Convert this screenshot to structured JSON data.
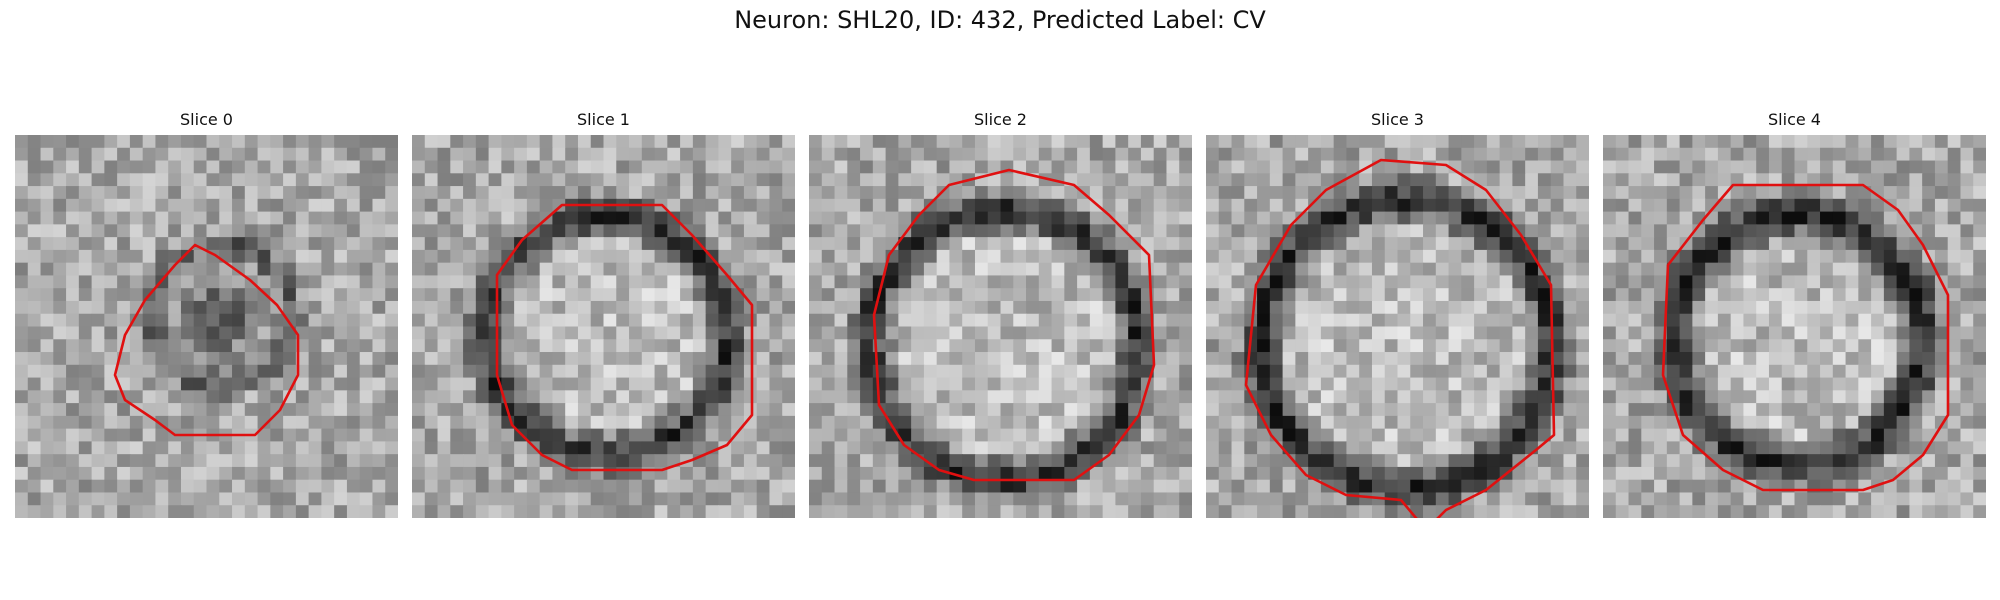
{
  "figure": {
    "title": "Neuron: SHL20, ID: 432, Predicted Label: CV"
  },
  "contour_color": "#e01010",
  "slices": [
    {
      "title": "Slice 0"
    },
    {
      "title": "Slice 1"
    },
    {
      "title": "Slice 2"
    },
    {
      "title": "Slice 3"
    },
    {
      "title": "Slice 4"
    }
  ]
}
